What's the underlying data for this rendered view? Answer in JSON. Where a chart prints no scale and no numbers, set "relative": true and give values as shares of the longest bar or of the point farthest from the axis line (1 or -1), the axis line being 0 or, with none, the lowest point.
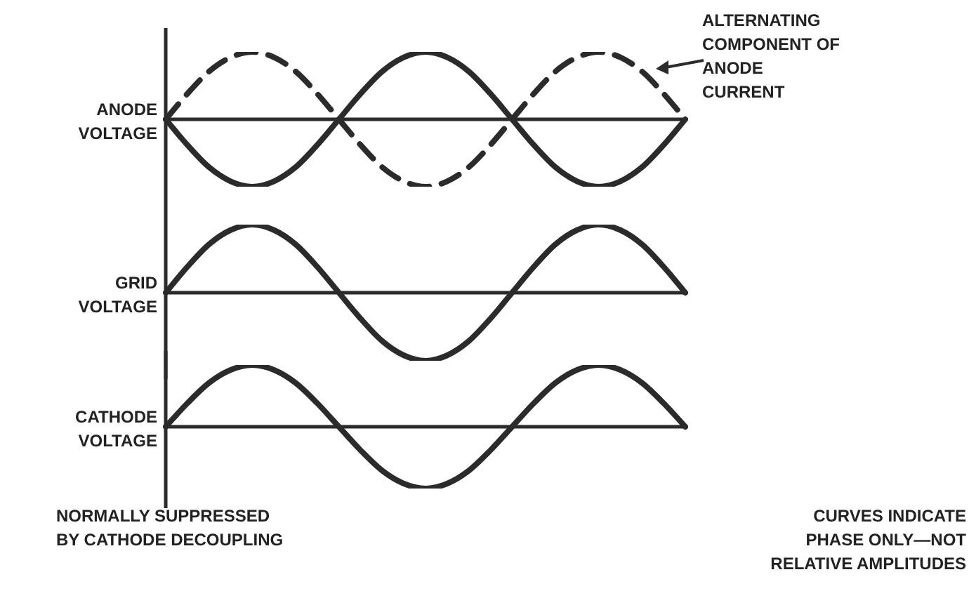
{
  "chart_data": [
    {
      "type": "line",
      "relative": true,
      "ylabel": "ANODE VOLTAGE",
      "annotations": [
        "ALTERNATING COMPONENT OF ANODE CURRENT"
      ],
      "categories": [
        null,
        null,
        null,
        null,
        null,
        null,
        null,
        null,
        null,
        null,
        null,
        null,
        null,
        null,
        null,
        null,
        null,
        null,
        null,
        null,
        null,
        null,
        null,
        null,
        null
      ],
      "series": [
        {
          "color": "#2b2b2b",
          "line_style": "solid",
          "values": [
            0,
            -0.38,
            -0.71,
            -0.92,
            -1,
            -0.92,
            -0.71,
            -0.38,
            0,
            0.38,
            0.71,
            0.92,
            1,
            0.92,
            0.71,
            0.38,
            0,
            -0.38,
            -0.71,
            -0.92,
            -1,
            -0.92,
            -0.71,
            -0.38,
            0
          ]
        },
        {
          "color": "#2b2b2b",
          "line_style": "dashed",
          "values": [
            0,
            0.38,
            0.71,
            0.92,
            1,
            0.92,
            0.71,
            0.38,
            0,
            -0.38,
            -0.71,
            -0.92,
            -1,
            -0.92,
            -0.71,
            -0.38,
            0,
            0.38,
            0.71,
            0.92,
            1,
            0.92,
            0.71,
            0.38,
            0
          ]
        }
      ]
    },
    {
      "type": "line",
      "relative": true,
      "ylabel": "GRID VOLTAGE",
      "categories": [
        null,
        null,
        null,
        null,
        null,
        null,
        null,
        null,
        null,
        null,
        null,
        null,
        null,
        null,
        null,
        null,
        null,
        null,
        null,
        null,
        null,
        null,
        null,
        null,
        null
      ],
      "series": [
        {
          "color": "#2b2b2b",
          "line_style": "solid",
          "values": [
            0,
            0.38,
            0.71,
            0.92,
            1,
            0.92,
            0.71,
            0.38,
            0,
            -0.38,
            -0.71,
            -0.92,
            -1,
            -0.92,
            -0.71,
            -0.38,
            0,
            0.38,
            0.71,
            0.92,
            1,
            0.92,
            0.71,
            0.38,
            0
          ]
        }
      ]
    },
    {
      "type": "line",
      "relative": true,
      "ylabel": "CATHODE VOLTAGE",
      "annotations": [
        "NORMALLY SUPPRESSED BY CATHODE DECOUPLING",
        "CURVES INDICATE PHASE ONLY—NOT RELATIVE AMPLITUDES"
      ],
      "categories": [
        null,
        null,
        null,
        null,
        null,
        null,
        null,
        null,
        null,
        null,
        null,
        null,
        null,
        null,
        null,
        null,
        null,
        null,
        null,
        null,
        null,
        null,
        null,
        null,
        null
      ],
      "series": [
        {
          "color": "#2b2b2b",
          "line_style": "solid",
          "values": [
            0,
            0.38,
            0.71,
            0.92,
            1,
            0.92,
            0.71,
            0.38,
            0,
            -0.38,
            -0.71,
            -0.92,
            -1,
            -0.92,
            -0.71,
            -0.38,
            0,
            0.38,
            0.71,
            0.92,
            1,
            0.92,
            0.71,
            0.38,
            0
          ]
        }
      ]
    }
  ]
}
